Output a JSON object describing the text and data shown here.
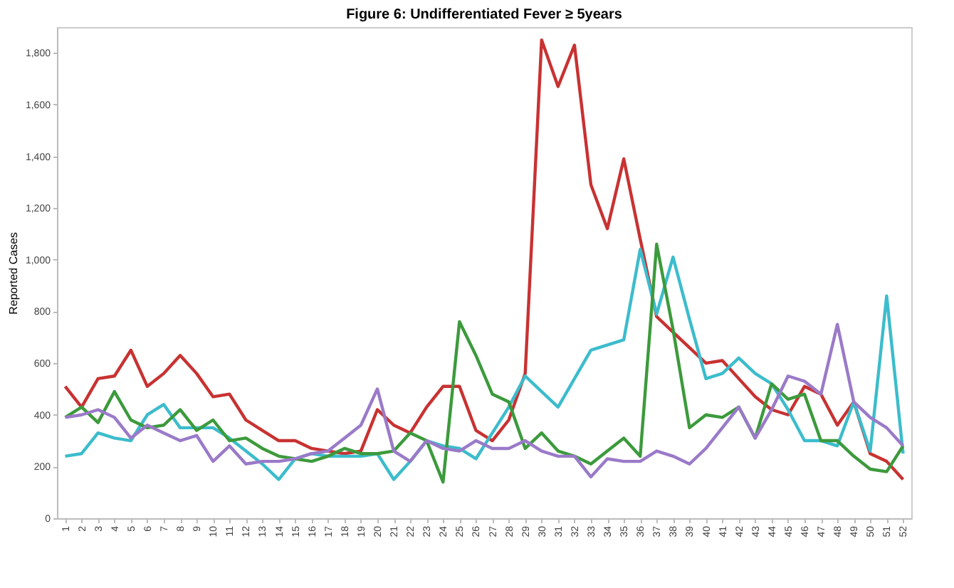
{
  "chart_data": {
    "type": "line",
    "title": "Figure 6: Undifferentiated Fever ≥ 5years",
    "ylabel": "Reported Cases",
    "categories": [
      "1",
      "2",
      "3",
      "4",
      "5",
      "6",
      "7",
      "8",
      "9",
      "10",
      "11",
      "12",
      "13",
      "14",
      "15",
      "16",
      "17",
      "18",
      "19",
      "20",
      "21",
      "22",
      "23",
      "24",
      "25",
      "26",
      "27",
      "28",
      "29",
      "30",
      "31",
      "32",
      "33",
      "34",
      "35",
      "36",
      "37",
      "38",
      "39",
      "40",
      "41",
      "42",
      "43",
      "44",
      "45",
      "46",
      "47",
      "48",
      "49",
      "50",
      "51",
      "52"
    ],
    "series": [
      {
        "color": "#c83232",
        "values": [
          510,
          430,
          540,
          550,
          650,
          510,
          560,
          630,
          560,
          470,
          480,
          380,
          340,
          300,
          300,
          270,
          260,
          250,
          260,
          420,
          360,
          330,
          430,
          510,
          510,
          340,
          300,
          380,
          560,
          1850,
          1670,
          1830,
          1290,
          1120,
          1390,
          1080,
          780,
          720,
          660,
          600,
          610,
          540,
          470,
          420,
          400,
          510,
          480,
          360,
          450,
          250,
          220,
          150
        ]
      },
      {
        "color": "#3cbccc",
        "values": [
          240,
          250,
          330,
          310,
          300,
          400,
          440,
          350,
          350,
          350,
          310,
          260,
          210,
          150,
          230,
          250,
          240,
          240,
          240,
          250,
          150,
          220,
          300,
          280,
          270,
          230,
          330,
          430,
          550,
          490,
          430,
          540,
          650,
          670,
          690,
          1040,
          790,
          1010,
          770,
          540,
          560,
          620,
          560,
          520,
          420,
          300,
          300,
          280,
          450,
          260,
          860,
          250
        ]
      },
      {
        "color": "#3c9a3c",
        "values": [
          390,
          430,
          370,
          490,
          380,
          350,
          360,
          420,
          340,
          380,
          300,
          310,
          270,
          240,
          230,
          220,
          240,
          270,
          250,
          250,
          260,
          330,
          300,
          140,
          760,
          630,
          480,
          450,
          270,
          330,
          260,
          240,
          210,
          260,
          310,
          240,
          1060,
          730,
          350,
          400,
          390,
          430,
          310,
          520,
          460,
          480,
          300,
          300,
          240,
          190,
          180,
          280
        ]
      },
      {
        "color": "#9a7ac8",
        "values": [
          390,
          400,
          420,
          390,
          310,
          360,
          330,
          300,
          320,
          220,
          280,
          210,
          220,
          220,
          230,
          250,
          260,
          310,
          360,
          500,
          260,
          220,
          300,
          270,
          260,
          300,
          270,
          270,
          300,
          260,
          240,
          240,
          160,
          230,
          220,
          220,
          260,
          240,
          210,
          270,
          350,
          430,
          310,
          420,
          550,
          530,
          480,
          750,
          450,
          390,
          350,
          280
        ]
      }
    ],
    "ylim": [
      0,
      1900
    ],
    "yticks": [
      {
        "value": 0,
        "label": "0"
      },
      {
        "value": 200,
        "label": "200"
      },
      {
        "value": 400,
        "label": "400"
      },
      {
        "value": 600,
        "label": "600"
      },
      {
        "value": 800,
        "label": "800"
      },
      {
        "value": 1000,
        "label": "1,000"
      },
      {
        "value": 1200,
        "label": "1,200"
      },
      {
        "value": 1400,
        "label": "1,400"
      },
      {
        "value": 1600,
        "label": "1,600"
      },
      {
        "value": 1800,
        "label": "1,800"
      }
    ],
    "grid": false,
    "legend": false,
    "marker": "none",
    "line_style": "solid"
  }
}
